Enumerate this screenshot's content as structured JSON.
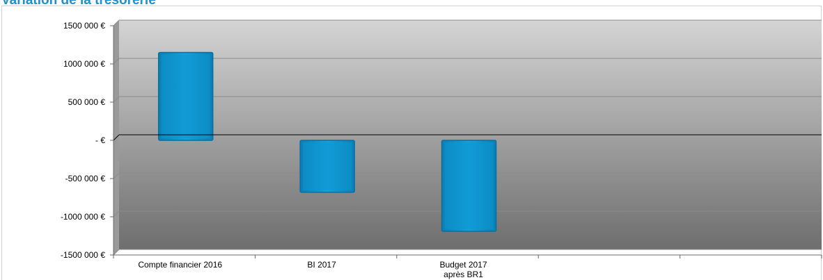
{
  "chart_data": {
    "type": "bar",
    "title": "Variation de la trésorerie",
    "categories": [
      "Compte financier 2016",
      "BI 2017",
      "Budget 2017 après BR1"
    ],
    "category_lines": [
      [
        "Compte financier 2016"
      ],
      [
        "BI 2017"
      ],
      [
        "Budget 2017",
        "après BR1"
      ]
    ],
    "series": [
      {
        "values": [
          1150000,
          -680000,
          -1190000
        ]
      }
    ],
    "ylim": [
      -1500000,
      1500000
    ],
    "yticks": [
      1500000,
      1000000,
      500000,
      0,
      -500000,
      -1000000,
      -1500000
    ],
    "ytick_labels": [
      "1500 000 €",
      "1000 000 €",
      "500 000 €",
      "-  €",
      "-500 000 €",
      "-1000 000 €",
      "-1500 000 €"
    ],
    "slot_count": 5,
    "grid": true,
    "legend": "none",
    "colors": {
      "bar_fill": "#0f95d0",
      "bar_edge": "#0a6f9e",
      "title": "#1f8fce",
      "plot_top": "#d4d4d4",
      "plot_bottom": "#6e6e6e",
      "gridline": "#8a8a8a"
    }
  }
}
